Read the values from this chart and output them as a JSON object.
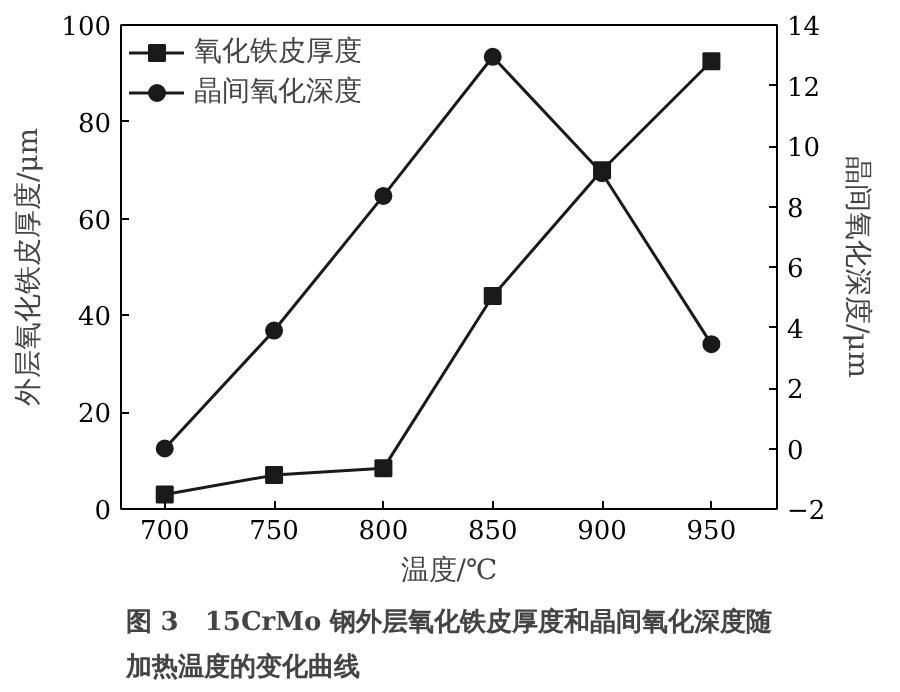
{
  "chart_data": {
    "type": "line",
    "title": "图 3　15CrMo 钢外层氧化铁皮厚度和晶间氧化深度随加热温度的变化曲线",
    "xlabel": "温度/℃",
    "ylabel": "外层氧化铁皮厚度/μm",
    "y2label": "晶间氧化深度/μm",
    "x": [
      700,
      750,
      800,
      850,
      900,
      950
    ],
    "series": [
      {
        "name": "氧化铁皮厚度",
        "color": "#1a1a1a",
        "marker": "square",
        "values": [
          3,
          7,
          8.4,
          44,
          70,
          92.5
        ]
      },
      {
        "name": "晶间氧化深度",
        "color": "#1a1a1a",
        "marker": "circle",
        "axis": "y2",
        "values": [
          0,
          3.9,
          8.35,
          12.95,
          9.1,
          3.45
        ]
      }
    ],
    "xlim": [
      680,
      980
    ],
    "xticks": [
      700,
      750,
      800,
      850,
      900,
      950
    ],
    "ylim": [
      0,
      100
    ],
    "yticks": [
      0,
      20,
      40,
      60,
      80,
      100
    ],
    "y2lim": [
      -2,
      14
    ],
    "y2ticks": [
      -2,
      0,
      2,
      4,
      6,
      8,
      10,
      12,
      14
    ],
    "grid": false,
    "legend": "top left",
    "line_style": "solid"
  }
}
